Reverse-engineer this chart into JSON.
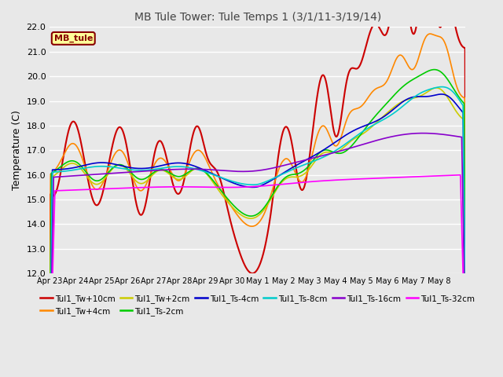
{
  "title": "MB Tule Tower: Tule Temps 1 (3/1/11-3/19/14)",
  "ylabel": "Temperature (C)",
  "ylim": [
    12.0,
    22.0
  ],
  "yticks": [
    12.0,
    13.0,
    14.0,
    15.0,
    16.0,
    17.0,
    18.0,
    19.0,
    20.0,
    21.0,
    22.0
  ],
  "plot_bg_color": "#e8e8e8",
  "grid_color": "white",
  "legend_box_label": "MB_tule",
  "legend_box_color": "#ffff99",
  "legend_box_border": "#880000",
  "series": [
    {
      "label": "Tul1_Tw+10cm",
      "color": "#cc0000",
      "lw": 1.5
    },
    {
      "label": "Tul1_Tw+4cm",
      "color": "#ff8800",
      "lw": 1.2
    },
    {
      "label": "Tul1_Tw+2cm",
      "color": "#cccc00",
      "lw": 1.2
    },
    {
      "label": "Tul1_Ts-2cm",
      "color": "#00cc00",
      "lw": 1.2
    },
    {
      "label": "Tul1_Ts-4cm",
      "color": "#0000cc",
      "lw": 1.2
    },
    {
      "label": "Tul1_Ts-8cm",
      "color": "#00cccc",
      "lw": 1.2
    },
    {
      "label": "Tul1_Ts-16cm",
      "color": "#8800cc",
      "lw": 1.2
    },
    {
      "label": "Tul1_Ts-32cm",
      "color": "#ff00ff",
      "lw": 1.2
    }
  ],
  "x_labels": [
    "Apr 23",
    "Apr 24",
    "Apr 25",
    "Apr 26",
    "Apr 27",
    "Apr 28",
    "Apr 29",
    "Apr 30",
    "May 1",
    "May 2",
    "May 3",
    "May 4",
    "May 5",
    "May 6",
    "May 7",
    "May 8"
  ],
  "n_days": 16
}
